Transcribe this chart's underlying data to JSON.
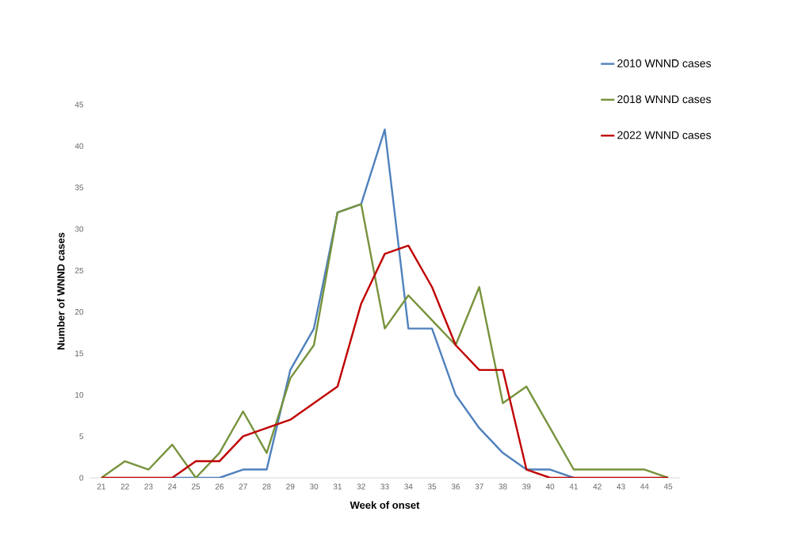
{
  "chart_data": {
    "type": "line",
    "xlabel": "Week of onset",
    "ylabel": "Number of WNND cases",
    "categories": [
      "21",
      "22",
      "23",
      "24",
      "25",
      "26",
      "27",
      "28",
      "29",
      "30",
      "31",
      "32",
      "33",
      "34",
      "35",
      "36",
      "37",
      "38",
      "39",
      "40",
      "41",
      "42",
      "43",
      "44",
      "45"
    ],
    "series": [
      {
        "name": "2010 WNND cases",
        "color": "#4f81bd",
        "values": [
          null,
          null,
          null,
          0,
          0,
          0,
          1,
          1,
          13,
          18,
          32,
          33,
          42,
          18,
          18,
          10,
          6,
          3,
          1,
          1,
          0,
          null,
          null,
          null,
          null
        ]
      },
      {
        "name": "2018 WNND cases",
        "color": "#77933c",
        "values": [
          0,
          2,
          1,
          4,
          0,
          3,
          8,
          3,
          12,
          16,
          32,
          33,
          18,
          22,
          19,
          16,
          23,
          9,
          11,
          6,
          1,
          1,
          1,
          1,
          0
        ]
      },
      {
        "name": "2022 WNND cases",
        "color": "#c00000",
        "values": [
          0,
          0,
          0,
          0,
          2,
          2,
          5,
          6,
          7,
          9,
          11,
          21,
          27,
          28,
          23,
          16,
          13,
          13,
          1,
          0,
          0,
          0,
          0,
          0,
          0
        ]
      }
    ],
    "ylim": [
      0,
      45
    ],
    "yticks": [
      0,
      5,
      10,
      15,
      20,
      25,
      30,
      35,
      40,
      45
    ],
    "legend": "top right",
    "marker": "none",
    "line_style": "solid"
  }
}
